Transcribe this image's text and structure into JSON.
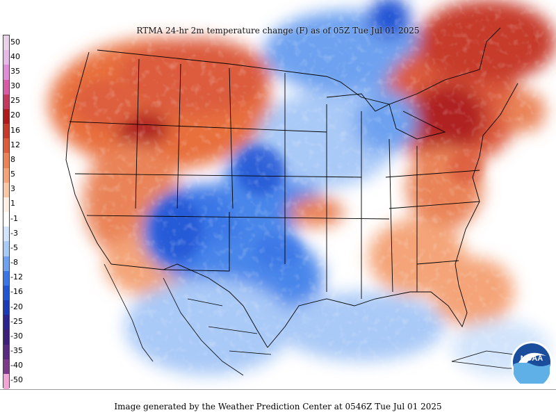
{
  "title": "RTMA 24-hr 2m temperature change (F) as of 05Z  Tue Jul 01 2025",
  "footer": "Image generated by the Weather Prediction Center at 0546Z Tue Jul 01 2025",
  "logo": {
    "text": "NOAA",
    "icon": "noaa-logo"
  },
  "legend": {
    "unit": "F",
    "labels": [
      "50",
      "40",
      "35",
      "30",
      "25",
      "20",
      "16",
      "12",
      "8",
      "5",
      "3",
      "1",
      "-1",
      "-3",
      "-5",
      "-8",
      "-12",
      "-16",
      "-20",
      "-25",
      "-30",
      "-35",
      "-40",
      "-50"
    ],
    "colors": [
      "#ead3ea",
      "#e6b9e6",
      "#dd8ed7",
      "#d65ca8",
      "#c43a5e",
      "#b01a1a",
      "#c63a2a",
      "#dc5c3c",
      "#ea8458",
      "#f4a478",
      "#f9c6a6",
      "#fff0e6",
      "#ffffff",
      "#d2e4fb",
      "#a9c9f7",
      "#6ea2f0",
      "#3a76e6",
      "#2155d4",
      "#1a3ab6",
      "#2a2390",
      "#3c1f78",
      "#58297e",
      "#7d3a8a",
      "#f2a6d6"
    ]
  },
  "colors": {
    "warm_strong": "#b02020",
    "warm": "#e8703e",
    "warm_light": "#f4a478",
    "cool_light": "#a9c9f7",
    "cool": "#4a86ea",
    "cool_strong": "#2155d4"
  }
}
